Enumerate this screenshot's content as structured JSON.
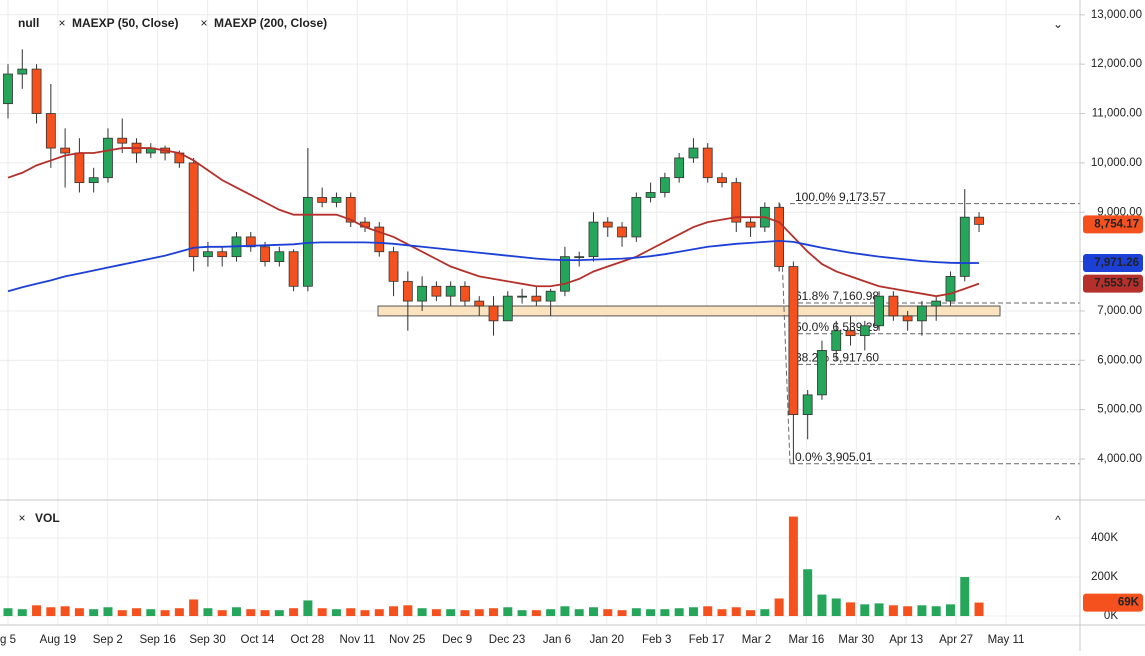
{
  "chart_data": {
    "type": "candlestick",
    "ylim": [
      3170,
      13300
    ],
    "yticks": [
      {
        "value": 4000,
        "label": "4,000.00"
      },
      {
        "value": 5000,
        "label": "5,000.00"
      },
      {
        "value": 6000,
        "label": "6,000.00"
      },
      {
        "value": 7000,
        "label": "7,000.00"
      },
      {
        "value": 8000,
        "label": "8,000.00"
      },
      {
        "value": 9000,
        "label": "9,000.00"
      },
      {
        "value": 10000,
        "label": "10,000.00"
      },
      {
        "value": 11000,
        "label": "11,000.00"
      },
      {
        "value": 12000,
        "label": "12,000.00"
      },
      {
        "value": 13000,
        "label": "13,000.00"
      }
    ],
    "xtick_labels": [
      "g 5",
      "Aug 19",
      "Sep 2",
      "Sep 16",
      "Sep 30",
      "Oct 14",
      "Oct 28",
      "Nov 11",
      "Nov 25",
      "Dec 9",
      "Dec 23",
      "Jan 6",
      "Jan 20",
      "Feb 3",
      "Feb 17",
      "Mar 2",
      "Mar 16",
      "Mar 30",
      "Apr 13",
      "Apr 27",
      "May 11"
    ],
    "grid": true,
    "series": [
      {
        "name": "null",
        "kind": "ohlc",
        "up_color": "#26a65b",
        "down_color": "#f4511e",
        "last_label": "8,754.17",
        "open": [
          11200,
          11800,
          11900,
          11000,
          10300,
          10200,
          9600,
          9700,
          10500,
          10400,
          10200,
          10300,
          10200,
          10000,
          8100,
          8200,
          8100,
          8500,
          8300,
          8000,
          8200,
          7500,
          9300,
          9200,
          9300,
          8800,
          8700,
          8200,
          7600,
          7200,
          7500,
          7300,
          7500,
          7200,
          7100,
          6800,
          7300,
          7300,
          7200,
          7400,
          8100,
          8100,
          8800,
          8700,
          8500,
          9300,
          9400,
          9700,
          10100,
          10300,
          9700,
          9600,
          8800,
          8700,
          9100,
          7900,
          4900,
          5300,
          6200,
          6600,
          6500,
          6700,
          7300,
          6900,
          6800,
          7100,
          7200,
          7700,
          8900
        ],
        "high": [
          12000,
          12300,
          12000,
          11600,
          10700,
          10500,
          9900,
          10700,
          10900,
          10500,
          10400,
          10350,
          10250,
          10100,
          8400,
          8300,
          8600,
          8600,
          8400,
          8300,
          8250,
          10300,
          9500,
          9400,
          9400,
          8900,
          8800,
          8300,
          7800,
          7700,
          7600,
          7600,
          7600,
          7300,
          7300,
          7400,
          7450,
          7500,
          7450,
          8300,
          8200,
          9000,
          8900,
          8800,
          9400,
          9600,
          9800,
          10200,
          10500,
          10400,
          9800,
          9700,
          8900,
          9200,
          9200,
          8000,
          5400,
          6400,
          6800,
          6900,
          6800,
          7400,
          7400,
          7000,
          7200,
          7300,
          7800,
          9470,
          9000
        ],
        "low": [
          10900,
          11500,
          10800,
          9900,
          9500,
          9400,
          9400,
          9600,
          10200,
          10000,
          10100,
          10050,
          9900,
          7800,
          7900,
          7900,
          8000,
          8200,
          7900,
          7900,
          7400,
          7400,
          9100,
          9100,
          8700,
          8600,
          8100,
          7300,
          6600,
          7000,
          7200,
          7100,
          7100,
          6900,
          6500,
          6800,
          7150,
          7100,
          6900,
          7300,
          7900,
          8000,
          8500,
          8300,
          8400,
          9200,
          9300,
          9600,
          10000,
          9600,
          9500,
          8600,
          8500,
          8600,
          7800,
          3905.01,
          4400,
          5200,
          6000,
          6300,
          6200,
          6600,
          6800,
          6600,
          6500,
          6800,
          7100,
          7600,
          8600
        ],
        "close": [
          11800,
          11900,
          11000,
          10300,
          10200,
          9600,
          9700,
          10500,
          10400,
          10200,
          10300,
          10200,
          10000,
          8100,
          8200,
          8100,
          8500,
          8300,
          8000,
          8200,
          7500,
          9300,
          9200,
          9300,
          8800,
          8700,
          8200,
          7600,
          7200,
          7500,
          7300,
          7500,
          7200,
          7100,
          6800,
          7300,
          7300,
          7200,
          7400,
          8100,
          8100,
          8800,
          8700,
          8500,
          9300,
          9400,
          9700,
          10100,
          10300,
          9700,
          9600,
          8800,
          8700,
          9100,
          7900,
          4900,
          5300,
          6200,
          6600,
          6500,
          6700,
          7300,
          6900,
          6800,
          7100,
          7200,
          7700,
          8900,
          8754.17
        ]
      },
      {
        "name": "MAEXP (50, Close)",
        "kind": "line",
        "color": "#b5302a",
        "last_label": "7,553.75",
        "values": [
          9700,
          9800,
          9950,
          10050,
          10150,
          10200,
          10200,
          10250,
          10300,
          10300,
          10300,
          10250,
          10200,
          10050,
          9850,
          9650,
          9500,
          9350,
          9200,
          9050,
          8950,
          8950,
          8950,
          8950,
          8850,
          8700,
          8600,
          8500,
          8350,
          8200,
          8050,
          7900,
          7800,
          7700,
          7650,
          7600,
          7550,
          7500,
          7500,
          7550,
          7650,
          7800,
          7900,
          8000,
          8100,
          8250,
          8400,
          8550,
          8700,
          8800,
          8850,
          8900,
          8900,
          8900,
          8800,
          8500,
          8200,
          7950,
          7800,
          7700,
          7600,
          7500,
          7450,
          7400,
          7350,
          7300,
          7350,
          7450,
          7553.75
        ]
      },
      {
        "name": "MAEXP (200, Close)",
        "kind": "line",
        "color": "#1c3fd6",
        "last_label": "7,971.26",
        "values": [
          7400,
          7480,
          7550,
          7620,
          7700,
          7760,
          7820,
          7880,
          7940,
          8000,
          8060,
          8120,
          8200,
          8280,
          8300,
          8300,
          8310,
          8320,
          8330,
          8340,
          8350,
          8380,
          8390,
          8390,
          8390,
          8390,
          8380,
          8360,
          8330,
          8300,
          8270,
          8240,
          8210,
          8180,
          8150,
          8120,
          8090,
          8060,
          8040,
          8030,
          8030,
          8040,
          8050,
          8060,
          8080,
          8110,
          8150,
          8200,
          8250,
          8300,
          8330,
          8360,
          8380,
          8400,
          8420,
          8400,
          8340,
          8280,
          8230,
          8180,
          8140,
          8100,
          8070,
          8040,
          8010,
          7990,
          7975,
          7970,
          7971.26
        ]
      }
    ],
    "fib": [
      {
        "value": 9173.57,
        "label": "100.0% 9,173.57"
      },
      {
        "value": 7160.98,
        "label": "61.8% 7,160.98"
      },
      {
        "value": 6539.29,
        "label": "50.0% 6,539.29"
      },
      {
        "value": 5917.6,
        "label": "38.2% 5,917.60"
      },
      {
        "value": 3905.01,
        "label": "0.0% 3,905.01"
      }
    ],
    "zone": {
      "low": 6900,
      "high": 7100,
      "color": "#fbe3c0"
    },
    "volume": {
      "title": "VOL",
      "ylim": [
        -46000,
        554000
      ],
      "yticks": [
        {
          "value": 0,
          "label": "0K"
        },
        {
          "value": 200000,
          "label": "200K"
        },
        {
          "value": 400000,
          "label": "400K"
        }
      ],
      "last_label": "69K",
      "values": [
        40000,
        35000,
        55000,
        45000,
        50000,
        40000,
        35000,
        45000,
        30000,
        40000,
        35000,
        30000,
        40000,
        85000,
        40000,
        30000,
        45000,
        35000,
        30000,
        30000,
        40000,
        80000,
        40000,
        35000,
        40000,
        30000,
        35000,
        50000,
        55000,
        40000,
        35000,
        35000,
        30000,
        35000,
        40000,
        45000,
        30000,
        30000,
        35000,
        50000,
        35000,
        45000,
        35000,
        30000,
        40000,
        35000,
        35000,
        40000,
        45000,
        50000,
        35000,
        45000,
        30000,
        35000,
        90000,
        510000,
        240000,
        110000,
        90000,
        70000,
        60000,
        65000,
        55000,
        50000,
        55000,
        50000,
        60000,
        200000,
        69000
      ]
    }
  }
}
